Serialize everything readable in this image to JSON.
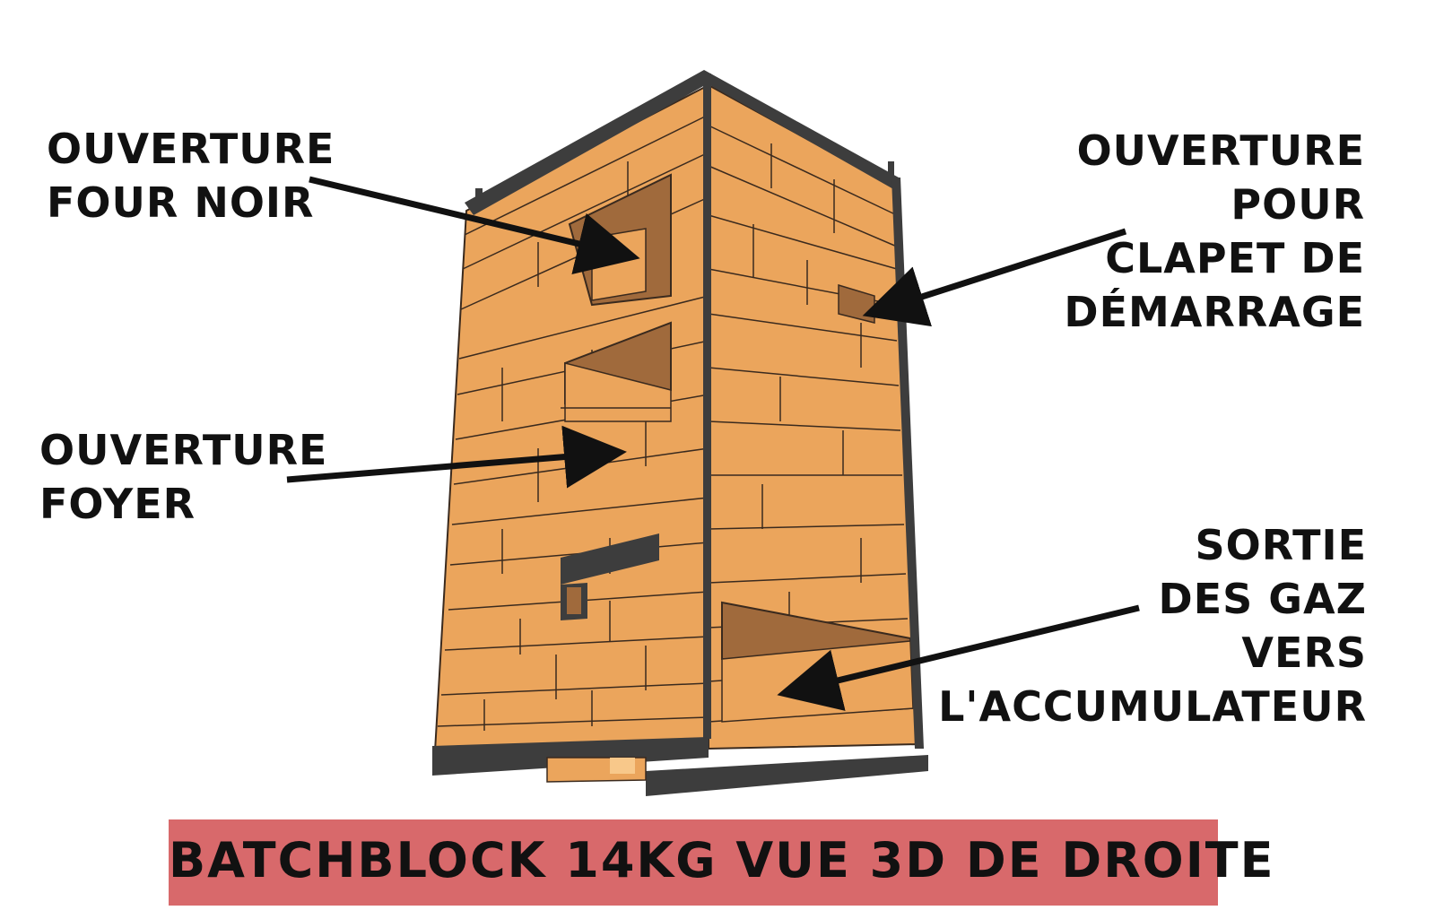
{
  "labels": {
    "four_noir": [
      "OUVERTURE",
      "FOUR NOIR"
    ],
    "clapet": [
      "OUVERTURE",
      "POUR",
      "CLAPET DE",
      "DÉMARRAGE"
    ],
    "foyer": [
      "OUVERTURE",
      "FOYER"
    ],
    "sortie": [
      "SORTIE",
      "DES GAZ",
      "VERS",
      "L'ACCUMULATEUR"
    ]
  },
  "title": "BATCHBLOCK 14KG VUE 3D DE DROITE",
  "colors": {
    "brick": "#eba55c",
    "brick_dark": "#a06a3c",
    "mortar": "#3a2a1e",
    "steel": "#3d3d3d",
    "banner": "#d8696b",
    "arrow": "#111111"
  }
}
